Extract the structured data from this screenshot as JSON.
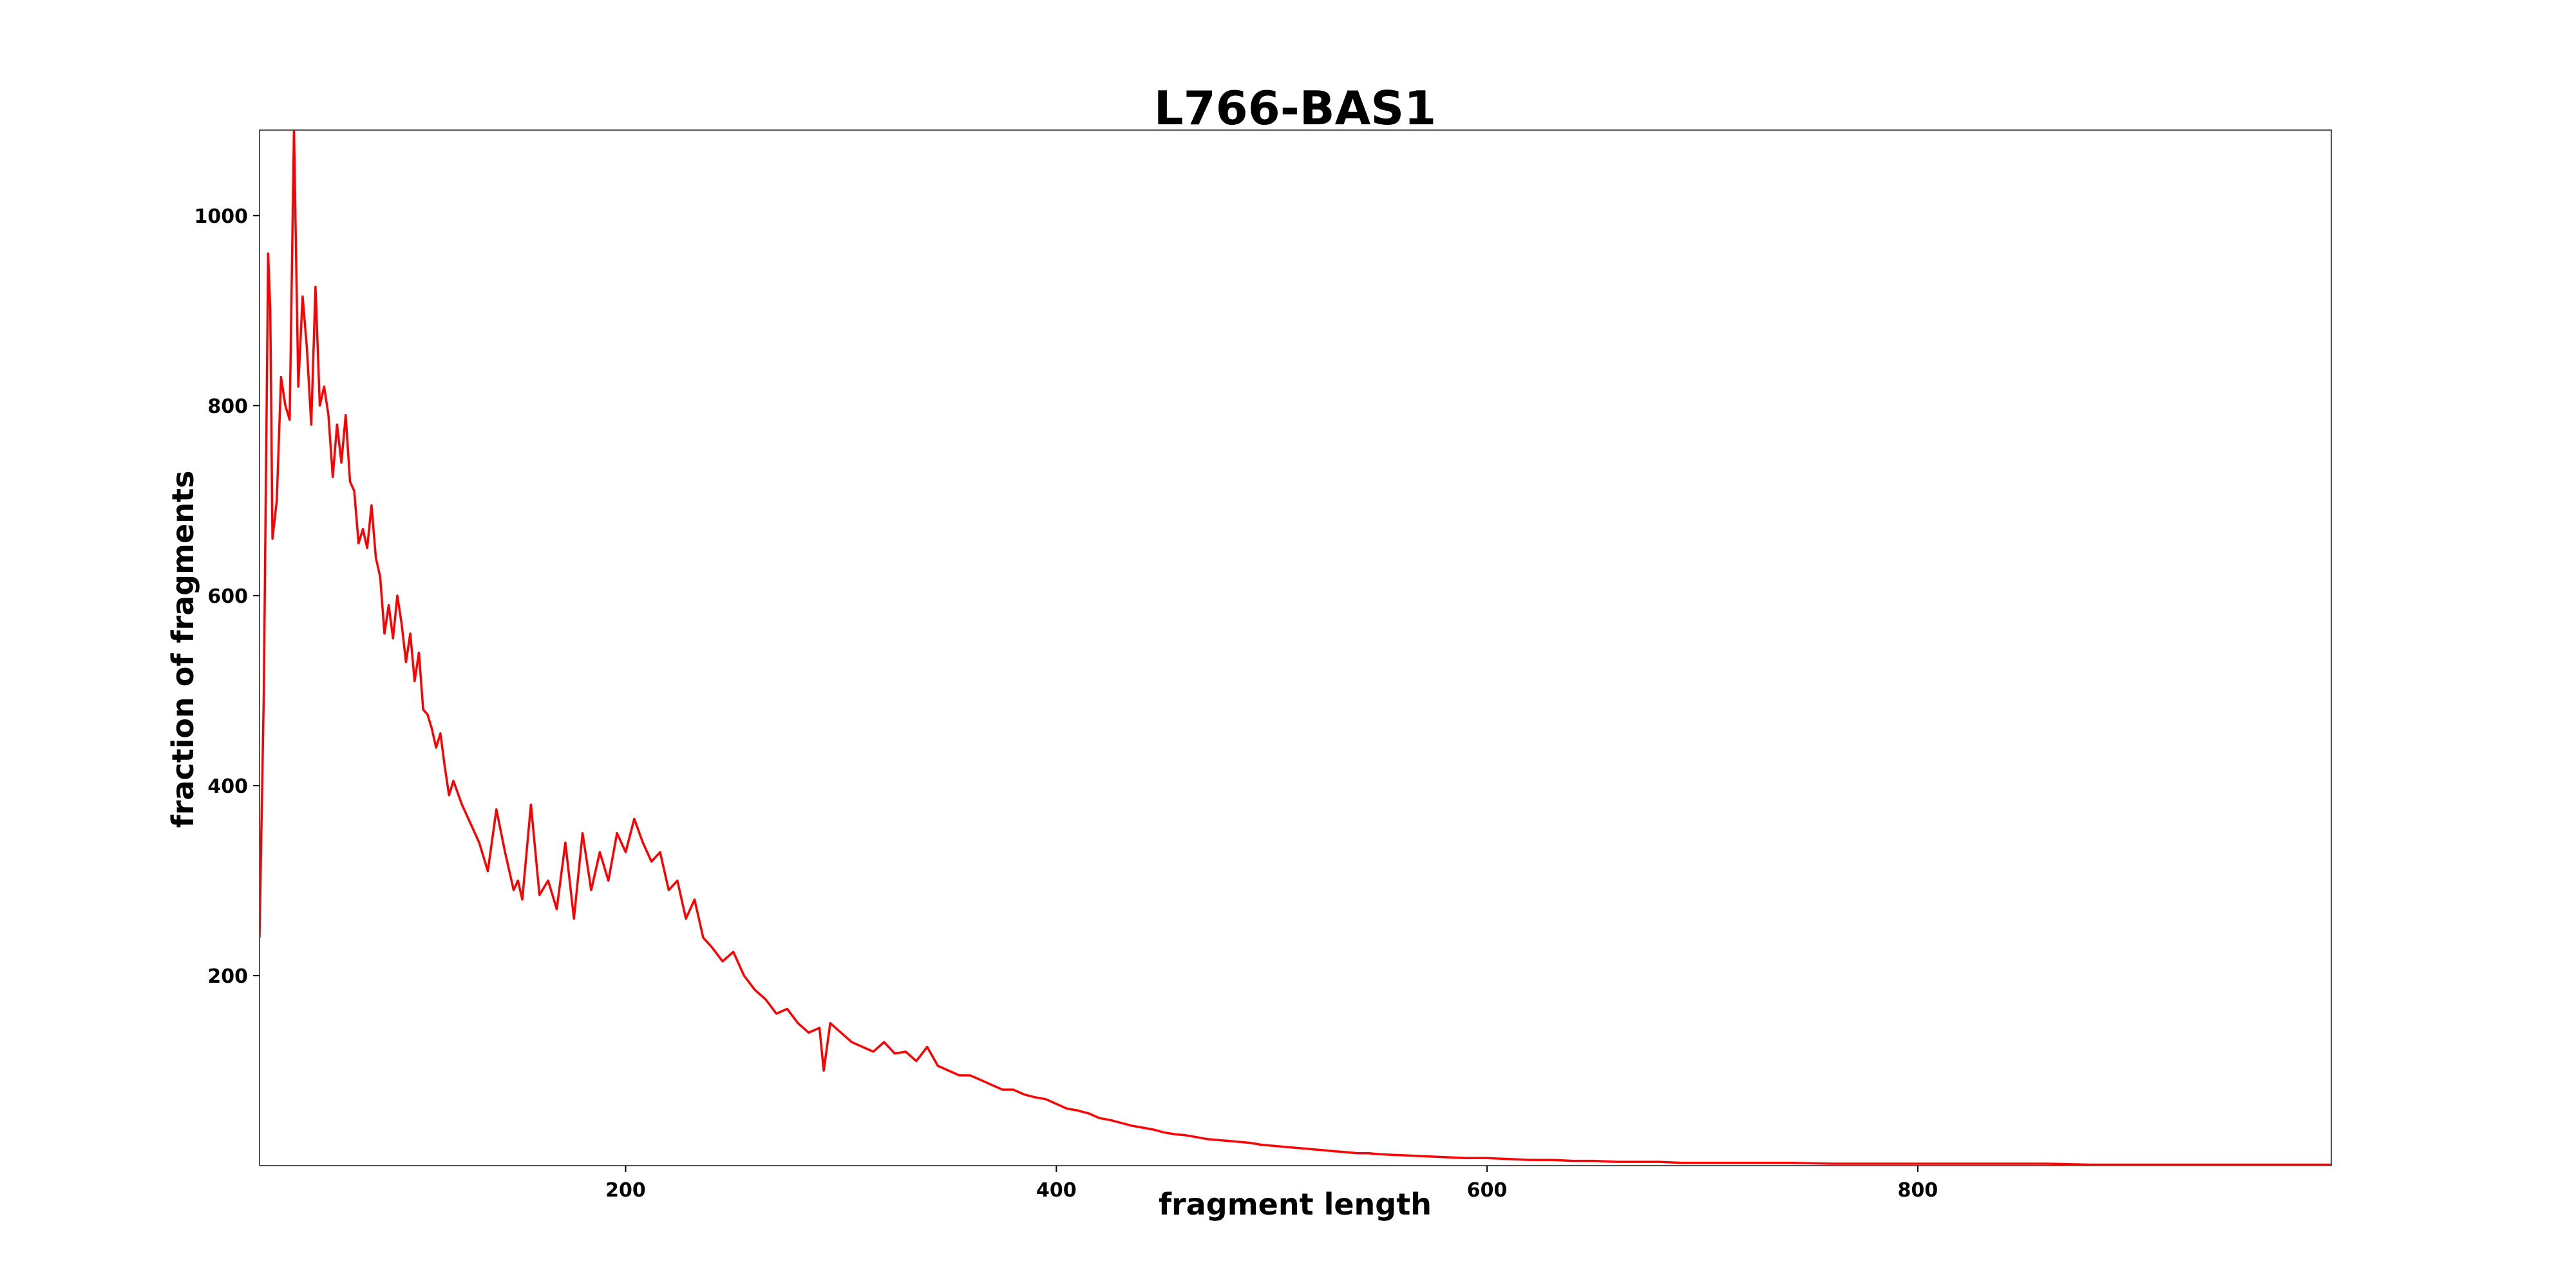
{
  "chart_data": {
    "type": "line",
    "title": "L766-BAS1",
    "xlabel": "fragment length",
    "ylabel": "fraction of fragments",
    "xlim": [
      30,
      992
    ],
    "ylim": [
      0,
      1090
    ],
    "xticks": [
      200,
      400,
      600,
      800
    ],
    "yticks": [
      200,
      400,
      600,
      800,
      1000
    ],
    "grid": false,
    "legend": "none",
    "colors": {
      "line": "#ff0000",
      "frame": "#555555",
      "background": "#ffffff"
    },
    "series": [
      {
        "color": "#ff0000",
        "x": [
          30,
          32,
          34,
          35,
          36,
          38,
          40,
          42,
          44,
          46,
          48,
          50,
          52,
          54,
          56,
          58,
          60,
          62,
          64,
          66,
          68,
          70,
          72,
          74,
          76,
          78,
          80,
          82,
          84,
          86,
          88,
          90,
          92,
          94,
          96,
          98,
          100,
          102,
          104,
          106,
          108,
          110,
          112,
          114,
          116,
          118,
          120,
          124,
          128,
          132,
          136,
          140,
          144,
          148,
          150,
          152,
          156,
          160,
          164,
          168,
          172,
          176,
          180,
          184,
          188,
          192,
          196,
          200,
          204,
          208,
          212,
          216,
          220,
          224,
          228,
          232,
          236,
          240,
          245,
          250,
          255,
          260,
          265,
          270,
          275,
          280,
          285,
          290,
          292,
          295,
          300,
          305,
          310,
          315,
          320,
          325,
          330,
          335,
          340,
          345,
          350,
          355,
          360,
          365,
          370,
          375,
          380,
          385,
          390,
          395,
          400,
          405,
          410,
          415,
          420,
          425,
          430,
          435,
          440,
          445,
          450,
          455,
          460,
          465,
          470,
          475,
          480,
          485,
          490,
          495,
          500,
          505,
          510,
          515,
          520,
          525,
          530,
          535,
          540,
          545,
          550,
          560,
          570,
          580,
          590,
          600,
          610,
          620,
          630,
          640,
          650,
          660,
          670,
          680,
          690,
          700,
          720,
          740,
          760,
          780,
          800,
          820,
          840,
          860,
          880,
          900,
          920,
          940,
          960,
          992
        ],
        "y": [
          240,
          500,
          960,
          900,
          660,
          700,
          830,
          800,
          785,
          1090,
          820,
          915,
          860,
          780,
          925,
          800,
          820,
          790,
          725,
          780,
          740,
          790,
          720,
          710,
          655,
          670,
          650,
          695,
          640,
          620,
          560,
          590,
          555,
          600,
          570,
          530,
          560,
          510,
          540,
          480,
          475,
          460,
          440,
          455,
          420,
          390,
          405,
          380,
          360,
          340,
          310,
          375,
          330,
          290,
          300,
          280,
          380,
          285,
          300,
          270,
          340,
          260,
          350,
          290,
          330,
          300,
          350,
          330,
          365,
          340,
          320,
          330,
          290,
          300,
          260,
          280,
          240,
          230,
          215,
          225,
          200,
          185,
          175,
          160,
          165,
          150,
          140,
          145,
          100,
          150,
          140,
          130,
          125,
          120,
          130,
          118,
          120,
          110,
          125,
          105,
          100,
          95,
          95,
          90,
          85,
          80,
          80,
          75,
          72,
          70,
          65,
          60,
          58,
          55,
          50,
          48,
          45,
          42,
          40,
          38,
          35,
          33,
          32,
          30,
          28,
          27,
          26,
          25,
          24,
          22,
          21,
          20,
          19,
          18,
          17,
          16,
          15,
          14,
          13,
          13,
          12,
          11,
          10,
          9,
          8,
          8,
          7,
          6,
          6,
          5,
          5,
          4,
          4,
          4,
          3,
          3,
          3,
          3,
          2,
          2,
          2,
          2,
          2,
          2,
          1,
          1,
          1,
          1,
          1,
          1
        ]
      }
    ]
  }
}
